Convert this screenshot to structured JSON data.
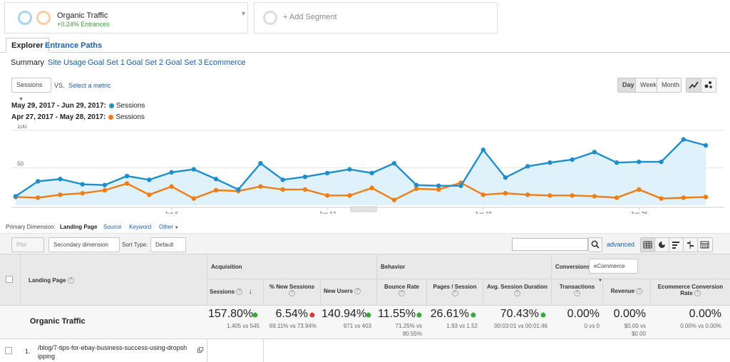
{
  "segments": {
    "primary": {
      "name": "Organic Traffic",
      "change": "+0.24% Entrances"
    },
    "add_label": "+ Add Segment"
  },
  "tabs": {
    "explorer": "Explorer",
    "entrance_paths": "Entrance Paths"
  },
  "subnav": [
    "Summary",
    "Site Usage",
    "Goal Set 1",
    "Goal Set 2",
    "Goal Set 3",
    "Ecommerce"
  ],
  "metric_picker": {
    "metric": "Sessions",
    "vs": "VS.",
    "select": "Select a metric"
  },
  "granularity": [
    "Day",
    "Week",
    "Month"
  ],
  "granularity_selected": "Day",
  "legend": [
    {
      "range": "May 29, 2017 - Jun 29, 2017:",
      "label": "Sessions",
      "color": "#1f8ec9"
    },
    {
      "range": "Apr 27, 2017 - May 28, 2017:",
      "label": "Sessions",
      "color": "#ef7d14"
    }
  ],
  "chart_data": {
    "type": "line",
    "y_ticks": [
      "100",
      "50"
    ],
    "x_ticks": [
      "Jun 5",
      "Jun 12",
      "Jun 19",
      "Jun 26"
    ],
    "ylim": [
      0,
      100
    ],
    "series": [
      {
        "name": "May 29, 2017 - Jun 29, 2017: Sessions",
        "color": "#1f8ec9",
        "values": [
          12,
          32,
          35,
          28,
          27,
          39,
          34,
          44,
          48,
          35,
          21,
          56,
          34,
          38,
          43,
          48,
          43,
          56,
          27,
          26,
          26,
          74,
          37,
          52,
          57,
          61,
          71,
          57,
          58,
          58,
          88,
          80
        ]
      },
      {
        "name": "Apr 27, 2017 - May 28, 2017: Sessions",
        "color": "#ef7d14",
        "values": [
          11,
          10,
          14,
          16,
          20,
          29,
          14,
          25,
          9,
          20,
          19,
          25,
          21,
          21,
          13,
          13,
          23,
          7,
          22,
          21,
          30,
          14,
          16,
          14,
          13,
          13,
          12,
          10,
          21,
          9,
          10,
          11
        ]
      }
    ]
  },
  "dimension": {
    "label": "Primary Dimension:",
    "options": [
      "Landing Page",
      "Source",
      "Keyword"
    ],
    "other": "Other"
  },
  "table_controls": {
    "plot_rows": "Plot Rows",
    "secondary": "Secondary dimension",
    "sort_label": "Sort Type:",
    "sort_value": "Default",
    "advanced": "advanced"
  },
  "table": {
    "col_dimension": "Landing Page",
    "groups": {
      "acquisition": "Acquisition",
      "behavior": "Behavior",
      "conversions": "Conversions",
      "conversions_select": "eCommerce"
    },
    "headers": [
      "Sessions",
      "% New Sessions",
      "New Users",
      "Bounce Rate",
      "Pages / Session",
      "Avg. Session Duration",
      "Transactions",
      "Revenue",
      "Ecommerce Conversion Rate"
    ],
    "summary": {
      "label": "Organic Traffic",
      "values": [
        "157.80%",
        "6.54%",
        "140.94%",
        "11.55%",
        "26.61%",
        "70.43%",
        "0.00%",
        "0.00%",
        "0.00%"
      ],
      "sub1": [
        "1,405 vs 545",
        "69.11% vs 73.94%",
        "971 vs 403",
        "71.25% vs",
        "1.93 vs 1.52",
        "00:03:01 vs 00:01:46",
        "0 vs 0",
        "$0.00 vs",
        "0.00% vs 0.00%"
      ],
      "sub2": [
        "",
        "",
        "",
        "80.55%",
        "",
        "",
        "",
        "$0.00",
        ""
      ]
    },
    "rows": [
      {
        "num": "1.",
        "page_line1": "/blog/7-tips-for-ebay-business-success-using-dropsh",
        "page_line2": "ipping"
      }
    ]
  }
}
